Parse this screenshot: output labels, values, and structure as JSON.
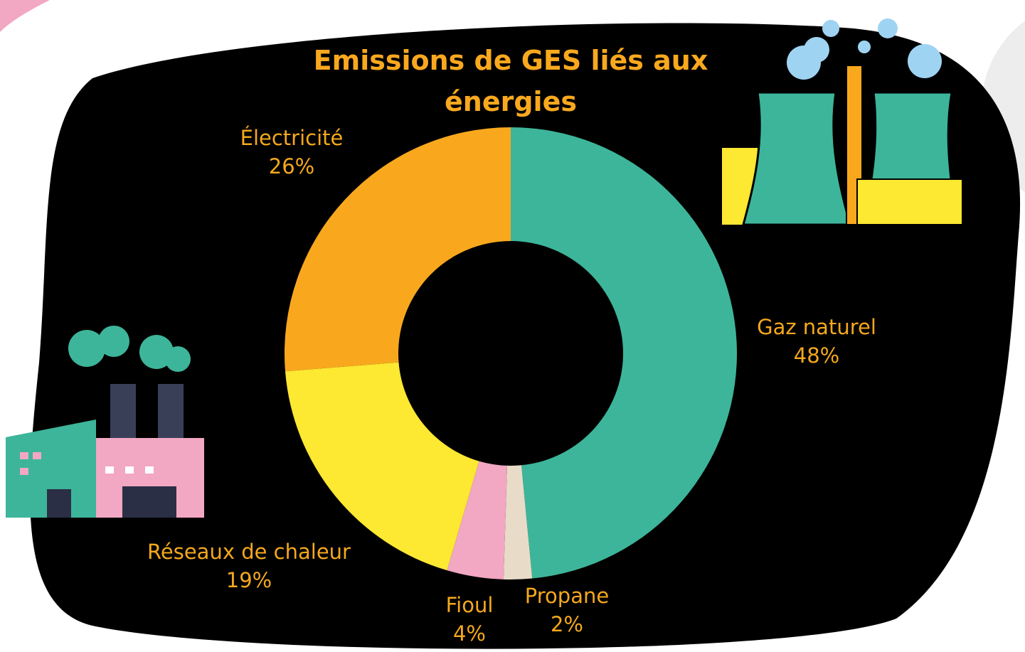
{
  "chart_data": {
    "type": "donut",
    "title": "Emissions de GES liés aux énergies",
    "categories": [
      "Gaz naturel",
      "Propane",
      "Fioul",
      "Réseaux de chaleur",
      "Électricité"
    ],
    "values": [
      48,
      2,
      4,
      19,
      26
    ],
    "value_labels": [
      "48%",
      "2%",
      "4%",
      "19%",
      "26%"
    ],
    "colors": [
      "#3db59a",
      "#e8dcc8",
      "#f2a7c3",
      "#fde832",
      "#f9a81e"
    ]
  }
}
